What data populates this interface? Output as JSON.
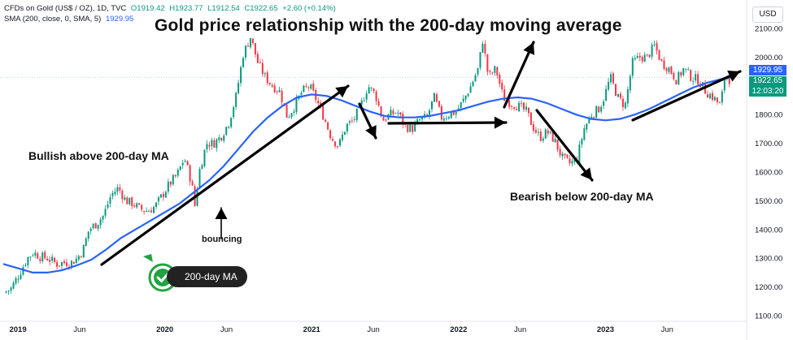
{
  "legend": {
    "symbol": "CFDs on Gold (US$ / OZ), 1D, TVC",
    "open": "O1919.42",
    "high": "H1923.77",
    "low": "L1912.54",
    "close": "C1922.65",
    "change": "+2.60 (+0.14%)",
    "sma_label": "SMA (200, close, 0, SMA, 5)",
    "sma_value": "1929.95"
  },
  "title": "Gold price relationship with the 200-day moving average",
  "annotations": {
    "bullish": "Bullish above 200-day MA",
    "bearish": "Bearish below 200-day MA",
    "bouncing": "bouncing",
    "ma_tag": "200-day MA"
  },
  "price_scale": {
    "currency": "USD",
    "sma_tag": "1929.95",
    "price_tag_price": "1922.65",
    "price_tag_time": "12:03:20"
  },
  "colors": {
    "up": "#089981",
    "down": "#f23645",
    "sma": "#2962ff",
    "badge": "#22a243"
  },
  "icons": {
    "ma_badge": "checkmark-badge-icon"
  },
  "chart_data": {
    "type": "line",
    "title": "Gold price relationship with the 200-day moving average",
    "xlabel": "",
    "ylabel": "",
    "ylim": [
      1100,
      2150
    ],
    "y_ticks": [
      "2100.00",
      "2000.00",
      "1900.00",
      "1800.00",
      "1700.00",
      "1600.00",
      "1500.00",
      "1400.00",
      "1300.00",
      "1200.00",
      "1100.00"
    ],
    "y_tick_values": [
      2100,
      2000,
      1900,
      1800,
      1700,
      1600,
      1500,
      1400,
      1300,
      1200,
      1100
    ],
    "x_ticks": [
      "2019",
      "Jun",
      "2020",
      "Jun",
      "2021",
      "Jun",
      "2022",
      "Jun",
      "2023",
      "Jun"
    ],
    "x_tick_values": [
      2019.0,
      2019.42,
      2020.0,
      2020.42,
      2021.0,
      2021.42,
      2022.0,
      2022.42,
      2023.0,
      2023.42
    ],
    "xlim": [
      2018.9,
      2023.95
    ],
    "grid": false,
    "series": [
      {
        "values": [
          [
            2018.92,
            1180
          ],
          [
            2018.97,
            1195
          ],
          [
            2019.02,
            1240
          ],
          [
            2019.08,
            1300
          ],
          [
            2019.12,
            1320
          ],
          [
            2019.17,
            1305
          ],
          [
            2019.22,
            1300
          ],
          [
            2019.28,
            1280
          ],
          [
            2019.33,
            1285
          ],
          [
            2019.38,
            1285
          ],
          [
            2019.42,
            1300
          ],
          [
            2019.46,
            1330
          ],
          [
            2019.5,
            1400
          ],
          [
            2019.55,
            1420
          ],
          [
            2019.6,
            1450
          ],
          [
            2019.65,
            1520
          ],
          [
            2019.7,
            1545
          ],
          [
            2019.75,
            1500
          ],
          [
            2019.8,
            1490
          ],
          [
            2019.85,
            1470
          ],
          [
            2019.9,
            1465
          ],
          [
            2019.95,
            1480
          ],
          [
            2020.0,
            1520
          ],
          [
            2020.05,
            1560
          ],
          [
            2020.1,
            1590
          ],
          [
            2020.15,
            1650
          ],
          [
            2020.2,
            1560
          ],
          [
            2020.22,
            1480
          ],
          [
            2020.25,
            1600
          ],
          [
            2020.3,
            1700
          ],
          [
            2020.35,
            1700
          ],
          [
            2020.4,
            1725
          ],
          [
            2020.45,
            1770
          ],
          [
            2020.5,
            1860
          ],
          [
            2020.55,
            2010
          ],
          [
            2020.6,
            2070
          ],
          [
            2020.65,
            1980
          ],
          [
            2020.7,
            1930
          ],
          [
            2020.75,
            1900
          ],
          [
            2020.8,
            1880
          ],
          [
            2020.85,
            1790
          ],
          [
            2020.9,
            1830
          ],
          [
            2020.95,
            1880
          ],
          [
            2021.0,
            1900
          ],
          [
            2021.05,
            1850
          ],
          [
            2021.1,
            1790
          ],
          [
            2021.15,
            1720
          ],
          [
            2021.2,
            1690
          ],
          [
            2021.25,
            1760
          ],
          [
            2021.3,
            1780
          ],
          [
            2021.35,
            1830
          ],
          [
            2021.4,
            1900
          ],
          [
            2021.45,
            1870
          ],
          [
            2021.5,
            1780
          ],
          [
            2021.55,
            1800
          ],
          [
            2021.6,
            1810
          ],
          [
            2021.65,
            1760
          ],
          [
            2021.7,
            1750
          ],
          [
            2021.75,
            1780
          ],
          [
            2021.8,
            1790
          ],
          [
            2021.85,
            1860
          ],
          [
            2021.9,
            1790
          ],
          [
            2021.95,
            1800
          ],
          [
            2022.0,
            1810
          ],
          [
            2022.05,
            1850
          ],
          [
            2022.1,
            1900
          ],
          [
            2022.15,
            1960
          ],
          [
            2022.18,
            2060
          ],
          [
            2022.22,
            1930
          ],
          [
            2022.27,
            1960
          ],
          [
            2022.32,
            1860
          ],
          [
            2022.37,
            1840
          ],
          [
            2022.42,
            1830
          ],
          [
            2022.48,
            1810
          ],
          [
            2022.52,
            1760
          ],
          [
            2022.57,
            1720
          ],
          [
            2022.62,
            1740
          ],
          [
            2022.67,
            1710
          ],
          [
            2022.72,
            1650
          ],
          [
            2022.77,
            1630
          ],
          [
            2022.82,
            1640
          ],
          [
            2022.87,
            1750
          ],
          [
            2022.92,
            1800
          ],
          [
            2022.97,
            1820
          ],
          [
            2023.0,
            1850
          ],
          [
            2023.05,
            1930
          ],
          [
            2023.1,
            1860
          ],
          [
            2023.15,
            1830
          ],
          [
            2023.2,
            1980
          ],
          [
            2023.25,
            2000
          ],
          [
            2023.3,
            2000
          ],
          [
            2023.35,
            2040
          ],
          [
            2023.4,
            1980
          ],
          [
            2023.45,
            1960
          ],
          [
            2023.5,
            1920
          ],
          [
            2023.55,
            1960
          ],
          [
            2023.6,
            1930
          ],
          [
            2023.65,
            1920
          ],
          [
            2023.7,
            1880
          ],
          [
            2023.75,
            1860
          ],
          [
            2023.8,
            1830
          ],
          [
            2023.83,
            1940
          ],
          [
            2023.86,
            1922.65
          ]
        ]
      },
      {
        "name": "SMA (200, close, 0, SMA, 5)",
        "values": [
          [
            2018.9,
            1280
          ],
          [
            2019.0,
            1265
          ],
          [
            2019.1,
            1250
          ],
          [
            2019.2,
            1250
          ],
          [
            2019.3,
            1258
          ],
          [
            2019.4,
            1275
          ],
          [
            2019.5,
            1295
          ],
          [
            2019.6,
            1330
          ],
          [
            2019.7,
            1370
          ],
          [
            2019.8,
            1400
          ],
          [
            2019.9,
            1430
          ],
          [
            2020.0,
            1460
          ],
          [
            2020.1,
            1490
          ],
          [
            2020.2,
            1530
          ],
          [
            2020.3,
            1570
          ],
          [
            2020.4,
            1620
          ],
          [
            2020.5,
            1680
          ],
          [
            2020.6,
            1740
          ],
          [
            2020.7,
            1790
          ],
          [
            2020.8,
            1830
          ],
          [
            2020.9,
            1860
          ],
          [
            2021.0,
            1870
          ],
          [
            2021.1,
            1865
          ],
          [
            2021.2,
            1850
          ],
          [
            2021.3,
            1830
          ],
          [
            2021.4,
            1810
          ],
          [
            2021.5,
            1795
          ],
          [
            2021.6,
            1790
          ],
          [
            2021.7,
            1790
          ],
          [
            2021.8,
            1795
          ],
          [
            2021.9,
            1805
          ],
          [
            2022.0,
            1815
          ],
          [
            2022.1,
            1830
          ],
          [
            2022.2,
            1845
          ],
          [
            2022.3,
            1855
          ],
          [
            2022.4,
            1860
          ],
          [
            2022.5,
            1855
          ],
          [
            2022.6,
            1840
          ],
          [
            2022.7,
            1820
          ],
          [
            2022.8,
            1800
          ],
          [
            2022.9,
            1785
          ],
          [
            2023.0,
            1780
          ],
          [
            2023.1,
            1785
          ],
          [
            2023.2,
            1800
          ],
          [
            2023.3,
            1820
          ],
          [
            2023.4,
            1845
          ],
          [
            2023.5,
            1870
          ],
          [
            2023.6,
            1895
          ],
          [
            2023.7,
            1912
          ],
          [
            2023.8,
            1925
          ],
          [
            2023.86,
            1929.95
          ]
        ]
      }
    ]
  }
}
